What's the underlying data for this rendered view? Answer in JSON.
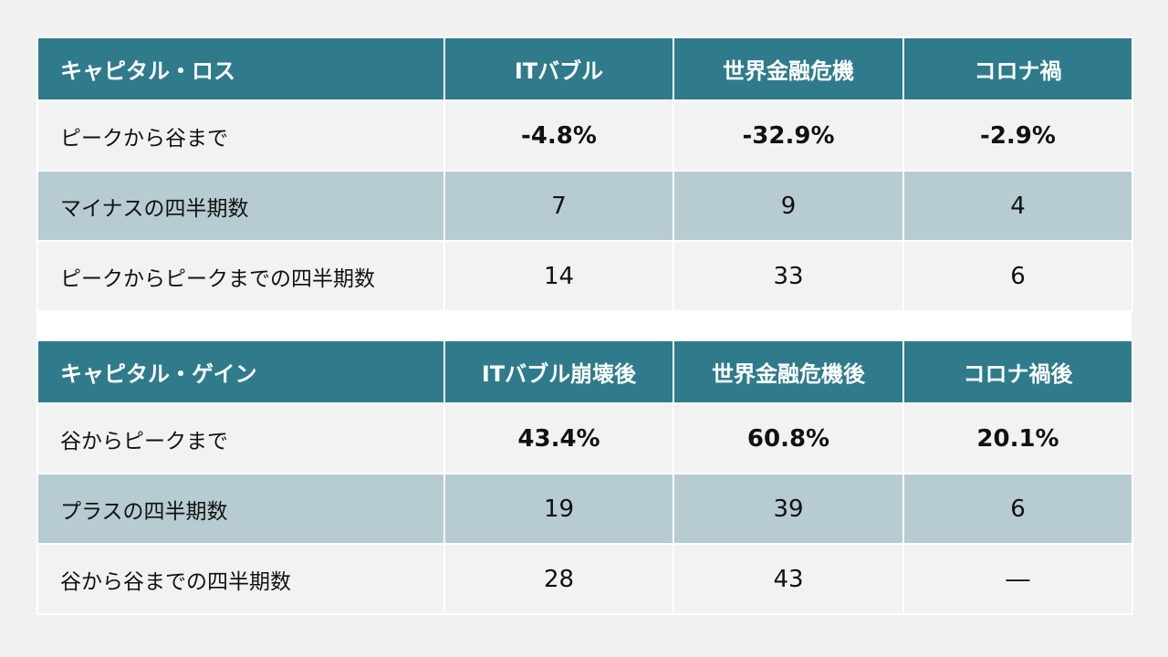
{
  "loss": {
    "headers": [
      "キャピタル・ロス",
      "ITバブル",
      "世界金融危機",
      "コロナ禍"
    ],
    "rows": [
      {
        "label": "ピークから谷まで",
        "values": [
          "-4.8%",
          "-32.9%",
          "-2.9%"
        ]
      },
      {
        "label": "マイナスの四半期数",
        "values": [
          "7",
          "9",
          "4"
        ]
      },
      {
        "label": "ピークからピークまでの四半期数",
        "values": [
          "14",
          "33",
          "6"
        ]
      }
    ]
  },
  "gain": {
    "headers": [
      "キャピタル・ゲイン",
      "ITバブル崩壊後",
      "世界金融危機後",
      "コロナ禍後"
    ],
    "rows": [
      {
        "label": "谷からピークまで",
        "values": [
          "43.4%",
          "60.8%",
          "20.1%"
        ]
      },
      {
        "label": "プラスの四半期数",
        "values": [
          "19",
          "39",
          "6"
        ]
      },
      {
        "label": "谷から谷までの四半期数",
        "values": [
          "28",
          "43",
          "―"
        ]
      }
    ]
  },
  "colors": {
    "header": "#2f7b8b",
    "stripe": "#b6ccd2",
    "light": "#f2f2f2"
  }
}
